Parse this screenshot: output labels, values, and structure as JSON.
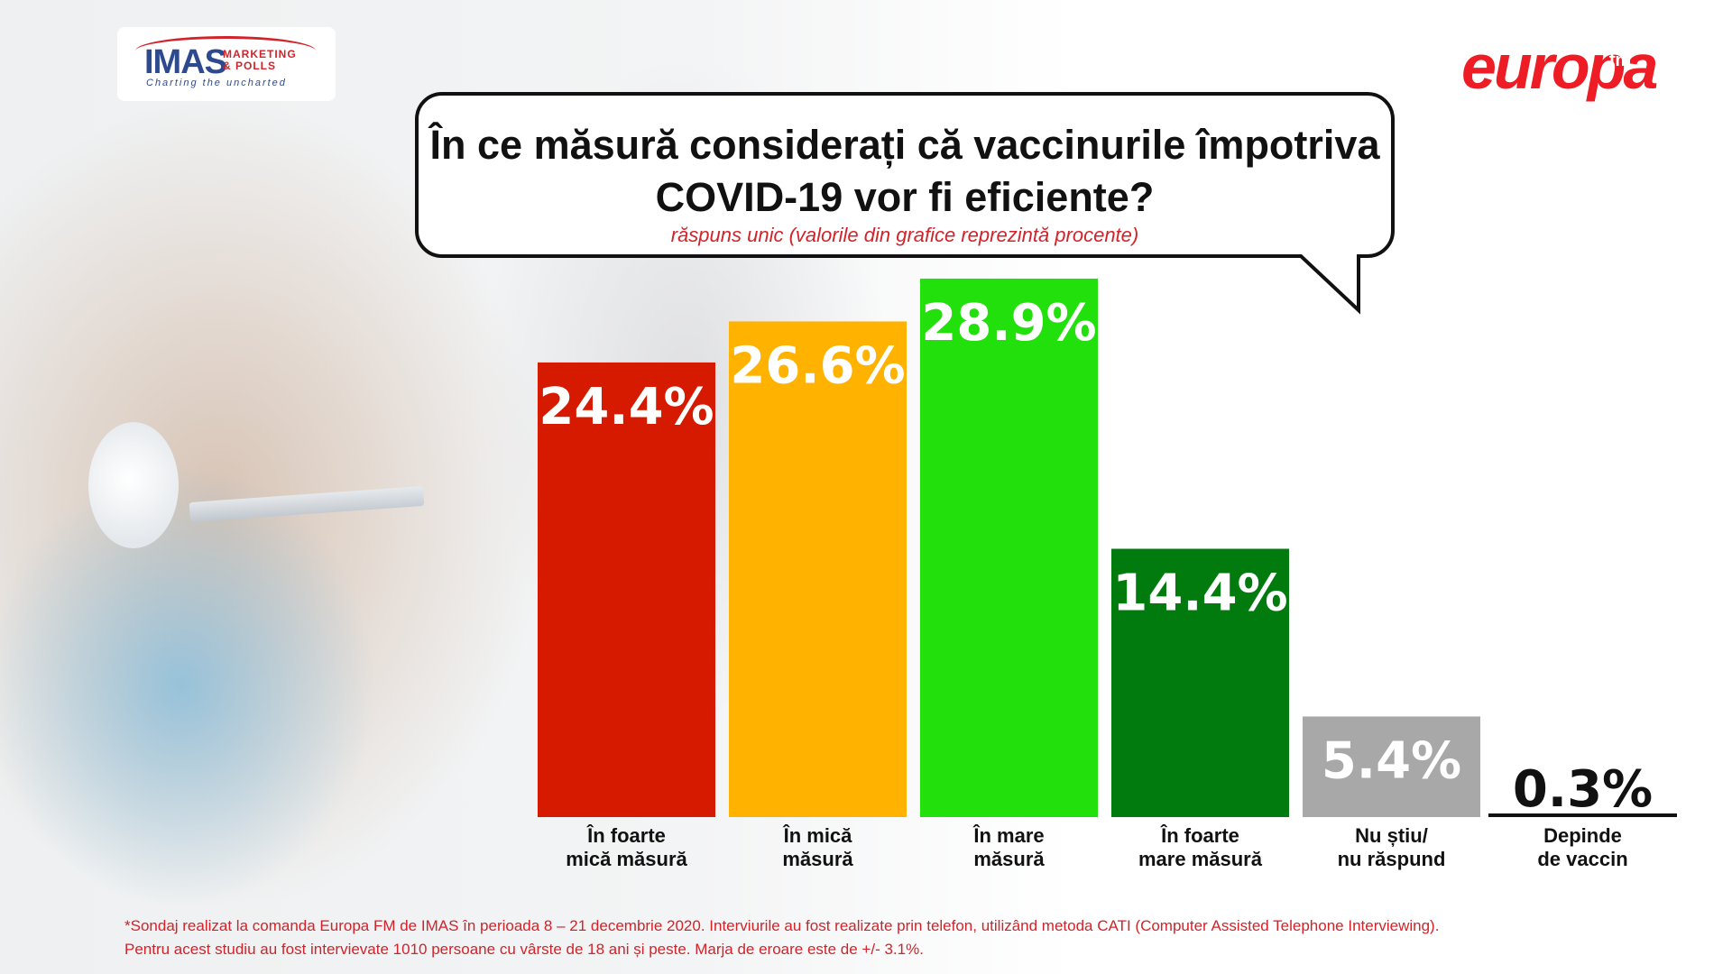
{
  "logos": {
    "imas_main": "IMAS",
    "imas_sub_1": "MARKETING",
    "imas_sub_2": "& POLLS",
    "imas_tagline": "Charting the uncharted",
    "europa_text": "europa",
    "europa_fm": "fm"
  },
  "colors": {
    "very_small": "#d51a00",
    "small": "#ffb300",
    "large": "#22e00c",
    "very_large": "#017b0e",
    "dont_know": "#a8a8a8",
    "depends": "#111111",
    "accent_red": "#d2232a"
  },
  "chart_data": {
    "type": "bar",
    "title": "În ce măsură considerați că vaccinurile împotriva COVID-19 vor fi eficiente?",
    "subtitle": "răspuns unic (valorile din grafice reprezintă procente)",
    "categories": [
      [
        "În foarte",
        "mică măsură"
      ],
      [
        "În mică",
        "măsură"
      ],
      [
        "În mare",
        "măsură"
      ],
      [
        "În foarte",
        "mare măsură"
      ],
      [
        "Nu știu/",
        "nu răspund"
      ],
      [
        "Depinde",
        "de vaccin"
      ]
    ],
    "values": [
      24.4,
      26.6,
      28.9,
      14.4,
      5.4,
      0.3
    ],
    "value_labels": [
      "24.4%",
      "26.6%",
      "28.9%",
      "14.4%",
      "5.4%",
      "0.3%"
    ],
    "unit": "%",
    "ylim": [
      0,
      30
    ],
    "grid": false,
    "legend": "none"
  },
  "footnote": {
    "line1": "*Sondaj realizat la comanda Europa FM de IMAS în perioada  8 – 21 decembrie 2020. Interviurile au fost realizate prin telefon, utilizând metoda CATI (Computer Assisted Telephone Interviewing).",
    "line2": "Pentru acest studiu au fost intervievate 1010 persoane cu vârste de 18 ani și peste. Marja de eroare este de +/- 3.1%."
  }
}
